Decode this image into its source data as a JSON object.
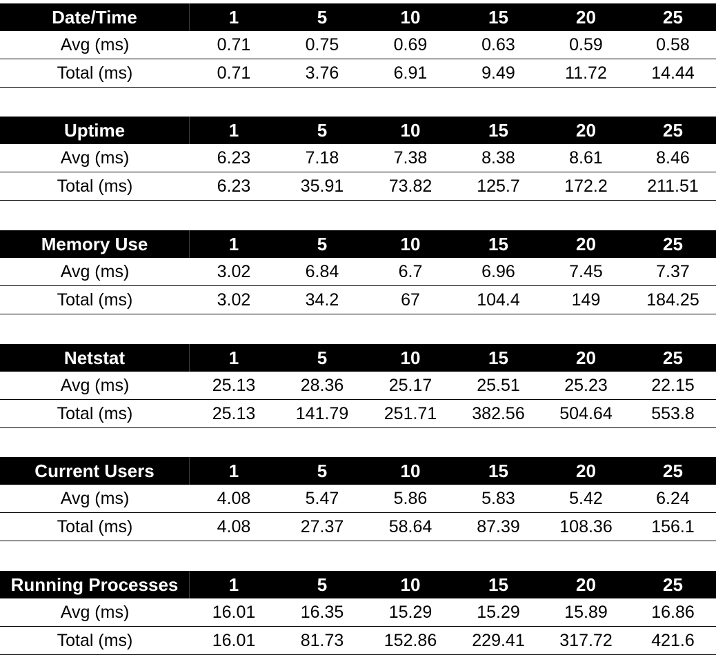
{
  "columns": [
    "1",
    "5",
    "10",
    "15",
    "20",
    "25"
  ],
  "tables": [
    {
      "title": "Date/Time",
      "rows": [
        {
          "label": "Avg (ms)",
          "values": [
            "0.71",
            "0.75",
            "0.69",
            "0.63",
            "0.59",
            "0.58"
          ]
        },
        {
          "label": "Total (ms)",
          "values": [
            "0.71",
            "3.76",
            "6.91",
            "9.49",
            "11.72",
            "14.44"
          ]
        }
      ]
    },
    {
      "title": "Uptime",
      "rows": [
        {
          "label": "Avg (ms)",
          "values": [
            "6.23",
            "7.18",
            "7.38",
            "8.38",
            "8.61",
            "8.46"
          ]
        },
        {
          "label": "Total (ms)",
          "values": [
            "6.23",
            "35.91",
            "73.82",
            "125.7",
            "172.2",
            "211.51"
          ]
        }
      ]
    },
    {
      "title": "Memory Use",
      "rows": [
        {
          "label": "Avg (ms)",
          "values": [
            "3.02",
            "6.84",
            "6.7",
            "6.96",
            "7.45",
            "7.37"
          ]
        },
        {
          "label": "Total (ms)",
          "values": [
            "3.02",
            "34.2",
            "67",
            "104.4",
            "149",
            "184.25"
          ]
        }
      ]
    },
    {
      "title": "Netstat",
      "rows": [
        {
          "label": "Avg (ms)",
          "values": [
            "25.13",
            "28.36",
            "25.17",
            "25.51",
            "25.23",
            "22.15"
          ]
        },
        {
          "label": "Total (ms)",
          "values": [
            "25.13",
            "141.79",
            "251.71",
            "382.56",
            "504.64",
            "553.8"
          ]
        }
      ]
    },
    {
      "title": "Current Users",
      "rows": [
        {
          "label": "Avg (ms)",
          "values": [
            "4.08",
            "5.47",
            "5.86",
            "5.83",
            "5.42",
            "6.24"
          ]
        },
        {
          "label": "Total (ms)",
          "values": [
            "4.08",
            "27.37",
            "58.64",
            "87.39",
            "108.36",
            "156.1"
          ]
        }
      ]
    },
    {
      "title": "Running Processes",
      "rows": [
        {
          "label": "Avg (ms)",
          "values": [
            "16.01",
            "16.35",
            "15.29",
            "15.29",
            "15.89",
            "16.86"
          ]
        },
        {
          "label": "Total (ms)",
          "values": [
            "16.01",
            "81.73",
            "152.86",
            "229.41",
            "317.72",
            "421.6"
          ]
        }
      ]
    }
  ]
}
